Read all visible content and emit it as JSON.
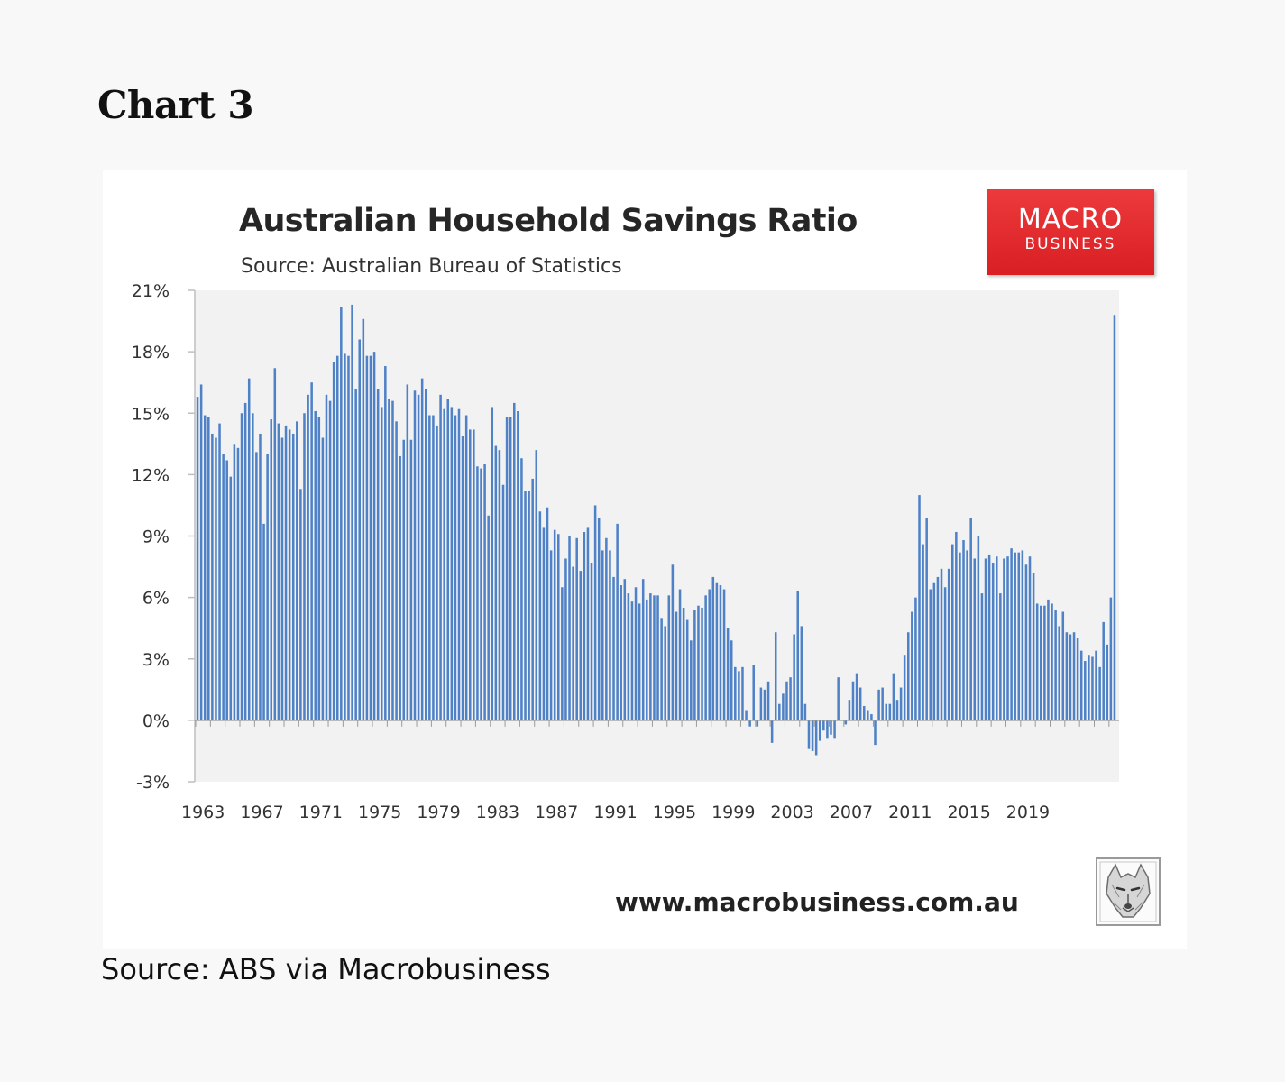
{
  "page": {
    "heading": "Chart 3",
    "source_caption": "Source: ABS via Macrobusiness"
  },
  "brand": {
    "line1": "MACRO",
    "line2": "BUSINESS",
    "color": "#e02a2d",
    "url": "www.macrobusiness.com.au",
    "mascot_icon": "wolf-sketch-icon"
  },
  "chart_data": {
    "type": "bar",
    "title": "Australian Household Savings Ratio",
    "subtitle": "Source: Australian Bureau of Statistics",
    "xlabel": "",
    "ylabel": "",
    "ylim": [
      -3,
      21
    ],
    "y_ticks": [
      -3,
      0,
      3,
      6,
      9,
      12,
      15,
      18,
      21
    ],
    "y_tick_suffix": "%",
    "x_ticks": [
      "1963",
      "1967",
      "1971",
      "1975",
      "1979",
      "1983",
      "1987",
      "1991",
      "1995",
      "1999",
      "2003",
      "2007",
      "2011",
      "2015",
      "2019"
    ],
    "x_start": 1963,
    "frequency": "quarterly",
    "bar_color": "#4f81c7",
    "grid": false,
    "legend": "none",
    "values": [
      15.8,
      16.4,
      14.9,
      14.8,
      14.0,
      13.8,
      14.5,
      13.0,
      12.7,
      11.9,
      13.5,
      13.3,
      15.0,
      15.5,
      16.7,
      15.0,
      13.1,
      14.0,
      9.6,
      13.0,
      14.7,
      17.2,
      14.5,
      13.8,
      14.4,
      14.2,
      14.0,
      14.6,
      11.3,
      15.0,
      15.9,
      16.5,
      15.1,
      14.8,
      13.8,
      15.9,
      15.6,
      17.5,
      17.8,
      20.2,
      17.9,
      17.8,
      20.3,
      16.2,
      18.6,
      19.6,
      17.8,
      17.8,
      18.0,
      16.2,
      15.3,
      17.3,
      15.7,
      15.6,
      14.6,
      12.9,
      13.7,
      16.4,
      13.7,
      16.1,
      15.9,
      16.7,
      16.2,
      14.9,
      14.9,
      14.4,
      15.9,
      15.2,
      15.7,
      15.3,
      14.9,
      15.2,
      13.9,
      14.9,
      14.2,
      14.2,
      12.4,
      12.3,
      12.5,
      10.0,
      15.3,
      13.4,
      13.2,
      11.5,
      14.8,
      14.8,
      15.5,
      15.1,
      12.8,
      11.2,
      11.2,
      11.8,
      13.2,
      10.2,
      9.4,
      10.4,
      8.3,
      9.3,
      9.1,
      6.5,
      7.9,
      9.0,
      7.5,
      8.9,
      7.3,
      9.2,
      9.4,
      7.7,
      10.5,
      9.9,
      8.3,
      8.9,
      8.3,
      7.0,
      9.6,
      6.6,
      6.9,
      6.2,
      5.8,
      6.5,
      5.7,
      6.9,
      5.9,
      6.2,
      6.1,
      6.1,
      5.0,
      4.6,
      6.1,
      7.6,
      5.3,
      6.4,
      5.5,
      4.9,
      3.9,
      5.4,
      5.6,
      5.5,
      6.1,
      6.4,
      7.0,
      6.7,
      6.6,
      6.4,
      4.5,
      3.9,
      2.6,
      2.4,
      2.6,
      0.5,
      -0.3,
      2.7,
      -0.3,
      1.6,
      1.5,
      1.9,
      -1.1,
      4.3,
      0.8,
      1.3,
      1.9,
      2.1,
      4.2,
      6.3,
      4.6,
      0.8,
      -1.4,
      -1.5,
      -1.7,
      -1.0,
      -0.5,
      -0.9,
      -0.7,
      -0.9,
      2.1,
      0.0,
      -0.2,
      1.0,
      1.9,
      2.3,
      1.6,
      0.7,
      0.5,
      0.3,
      -1.2,
      1.5,
      1.6,
      0.8,
      0.8,
      2.3,
      1.0,
      1.6,
      3.2,
      4.3,
      5.3,
      6.0,
      11.0,
      8.6,
      9.9,
      6.4,
      6.7,
      7.0,
      7.4,
      6.5,
      7.4,
      8.6,
      9.2,
      8.2,
      8.8,
      8.3,
      9.9,
      7.9,
      9.0,
      6.2,
      7.9,
      8.1,
      7.7,
      8.0,
      6.2,
      7.9,
      8.0,
      8.4,
      8.2,
      8.2,
      8.3,
      7.6,
      8.0,
      7.2,
      5.7,
      5.6,
      5.6,
      5.9,
      5.7,
      5.4,
      4.6,
      5.3,
      4.3,
      4.2,
      4.3,
      4.0,
      3.4,
      2.9,
      3.2,
      3.1,
      3.4,
      2.6,
      4.8,
      3.7,
      6.0,
      19.8
    ]
  }
}
